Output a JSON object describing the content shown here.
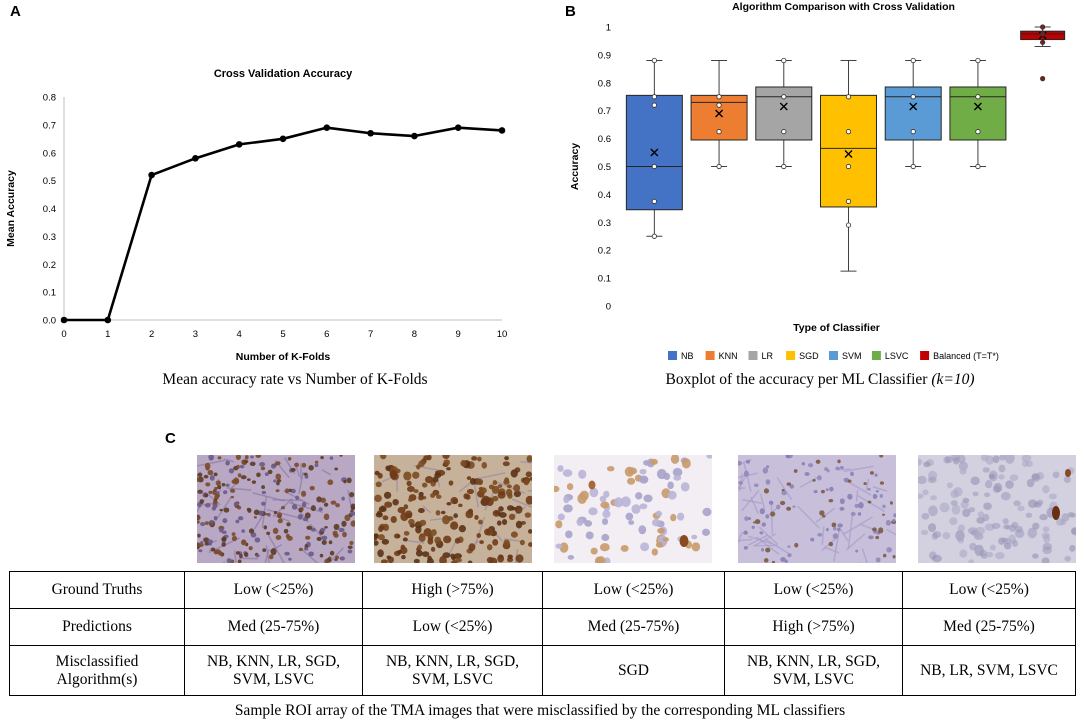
{
  "panel_labels": {
    "a": "A",
    "b": "B",
    "c": "C"
  },
  "chart_data": [
    {
      "type": "line",
      "title": "Cross Validation Accuracy",
      "xlabel": "Number of K-Folds",
      "ylabel": "Mean Accuracy",
      "x": [
        0,
        1,
        2,
        3,
        4,
        5,
        6,
        7,
        8,
        9,
        10
      ],
      "y": [
        0.0,
        0.0,
        0.52,
        0.58,
        0.63,
        0.65,
        0.69,
        0.67,
        0.66,
        0.69,
        0.68
      ],
      "x_ticks": [
        "0",
        "1",
        "2",
        "3",
        "4",
        "5",
        "6",
        "7",
        "8",
        "9",
        "10"
      ],
      "y_ticks": [
        "0.0",
        "0.1",
        "0.2",
        "0.3",
        "0.4",
        "0.5",
        "0.6",
        "0.7",
        "0.8"
      ],
      "xlim": [
        0,
        10
      ],
      "ylim": [
        0,
        0.8
      ],
      "grid": false,
      "color": "#000000",
      "caption": "Mean accuracy rate vs Number of K-Folds"
    },
    {
      "type": "box",
      "title": "Algorithm Comparison with Cross Validation",
      "xlabel": "Type of Classifier",
      "ylabel": "Accuracy",
      "ylim": [
        0,
        1
      ],
      "y_ticks": [
        "0",
        "0.1",
        "0.2",
        "0.3",
        "0.4",
        "0.5",
        "0.6",
        "0.7",
        "0.8",
        "0.9",
        "1"
      ],
      "grid": false,
      "legend_position": "bottom",
      "caption_main": "Boxplot of the accuracy per ML Classifier ",
      "caption_italic": "(k=10)",
      "series": [
        {
          "name": "NB",
          "color": "#4472c4",
          "whisker_low": 0.25,
          "q1": 0.345,
          "median": 0.5,
          "q3": 0.755,
          "whisker_high": 0.88,
          "mean": 0.55,
          "points": [
            0.25,
            0.375,
            0.5,
            0.72,
            0.75,
            0.88
          ]
        },
        {
          "name": "KNN",
          "color": "#ed7d31",
          "whisker_low": 0.5,
          "q1": 0.595,
          "median": 0.73,
          "q3": 0.755,
          "whisker_high": 0.88,
          "mean": 0.69,
          "points": [
            0.5,
            0.625,
            0.72,
            0.75
          ]
        },
        {
          "name": "LR",
          "color": "#a5a5a5",
          "whisker_low": 0.5,
          "q1": 0.595,
          "median": 0.75,
          "q3": 0.785,
          "whisker_high": 0.88,
          "mean": 0.715,
          "points": [
            0.5,
            0.625,
            0.75,
            0.88
          ]
        },
        {
          "name": "SGD",
          "color": "#ffc000",
          "whisker_low": 0.125,
          "q1": 0.355,
          "median": 0.565,
          "q3": 0.755,
          "whisker_high": 0.88,
          "mean": 0.545,
          "points": [
            0.29,
            0.375,
            0.5,
            0.625,
            0.75
          ]
        },
        {
          "name": "SVM",
          "color": "#5b9bd5",
          "whisker_low": 0.5,
          "q1": 0.595,
          "median": 0.75,
          "q3": 0.785,
          "whisker_high": 0.88,
          "mean": 0.715,
          "points": [
            0.5,
            0.625,
            0.75,
            0.88
          ]
        },
        {
          "name": "LSVC",
          "color": "#70ad47",
          "whisker_low": 0.5,
          "q1": 0.595,
          "median": 0.75,
          "q3": 0.785,
          "whisker_high": 0.88,
          "mean": 0.715,
          "points": [
            0.5,
            0.625,
            0.75,
            0.88
          ]
        },
        {
          "name": "Balanced (T=T*)",
          "color": "#c00000",
          "whisker_low": 0.93,
          "q1": 0.955,
          "median": 0.975,
          "q3": 0.985,
          "whisker_high": 1.0,
          "mean": 0.97,
          "points": [
            0.815,
            0.945,
            0.975,
            1.0
          ]
        }
      ]
    }
  ],
  "roi_images": [
    {
      "name": "roi-1",
      "stain": "moderate"
    },
    {
      "name": "roi-2",
      "stain": "heavy"
    },
    {
      "name": "roi-3",
      "stain": "sparse"
    },
    {
      "name": "roi-4",
      "stain": "light"
    },
    {
      "name": "roi-5",
      "stain": "blurred"
    }
  ],
  "table": {
    "rows": [
      {
        "label": "Ground Truths",
        "cells": [
          "Low (<25%)",
          "High (>75%)",
          "Low (<25%)",
          "Low (<25%)",
          "Low (<25%)"
        ]
      },
      {
        "label": "Predictions",
        "cells": [
          "Med (25-75%)",
          "Low (<25%)",
          "Med (25-75%)",
          "High (>75%)",
          "Med (25-75%)"
        ]
      },
      {
        "label": "Misclassified Algorithm(s)",
        "cells": [
          "NB, KNN, LR, SGD, SVM, LSVC",
          "NB, KNN, LR, SGD, SVM, LSVC",
          "SGD",
          "NB, KNN, LR, SGD, SVM, LSVC",
          "NB, LR, SVM, LSVC"
        ]
      }
    ]
  },
  "caption_c": "Sample ROI array of the TMA images that were misclassified by the corresponding ML classifiers"
}
